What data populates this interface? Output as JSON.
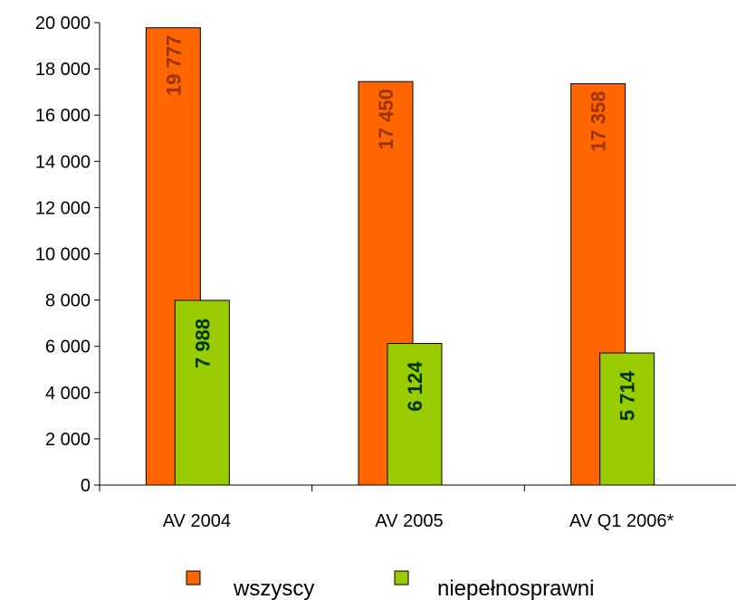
{
  "chart_data": {
    "type": "bar",
    "title": "",
    "xlabel": "",
    "ylabel": "",
    "categories": [
      "AV 2004",
      "AV 2005",
      "AV Q1 2006*"
    ],
    "ylim": [
      0,
      20000
    ],
    "yticks": [
      0,
      2000,
      4000,
      6000,
      8000,
      10000,
      12000,
      14000,
      16000,
      18000,
      20000
    ],
    "ytick_labels": [
      "0",
      "2 000",
      "4 000",
      "6 000",
      "8 000",
      "10 000",
      "12 000",
      "14 000",
      "16 000",
      "18 000",
      "20 000"
    ],
    "grid": false,
    "legend_position": "bottom",
    "series": [
      {
        "name": "wszyscy",
        "color": "#ff6600",
        "label_color": "#993300",
        "values": [
          19777,
          17450,
          17358
        ],
        "value_labels": [
          "19 777",
          "17 450",
          "17 358"
        ]
      },
      {
        "name": "niepełnosprawni",
        "color": "#99cc00",
        "label_color": "#003300",
        "values": [
          7988,
          6124,
          5714
        ],
        "value_labels": [
          "7 988",
          "6 124",
          "5 714"
        ]
      }
    ]
  }
}
